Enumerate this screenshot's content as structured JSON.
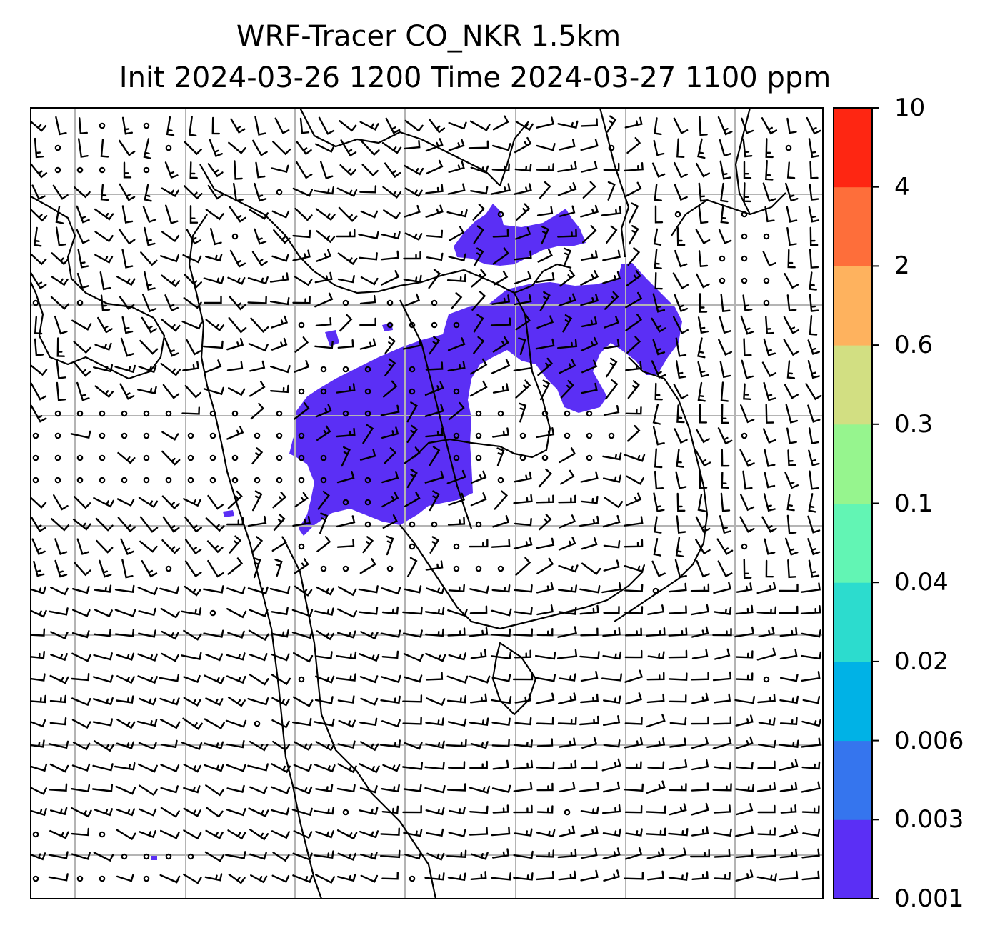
{
  "title": {
    "line1": "WRF-Tracer CO_NKR 1.5km",
    "line2": "Init 2024-03-26 1200 Time 2024-03-27 1100 ppm"
  },
  "colorbar": {
    "levels": [
      "0.001",
      "0.003",
      "0.006",
      "0.02",
      "0.04",
      "0.1",
      "0.3",
      "0.6",
      "2",
      "4",
      "10"
    ],
    "colors": [
      "#5b2ff5",
      "#3575ee",
      "#00b2e6",
      "#2cdcce",
      "#62f5b4",
      "#96f58e",
      "#d2df82",
      "#feb25e",
      "#fe6e3a",
      "#fe2612"
    ]
  },
  "map": {
    "plume_color": "#5b2ff5",
    "grid_color": "#b4b4b4",
    "coast_color": "#000000",
    "barb_color": "#000000"
  }
}
